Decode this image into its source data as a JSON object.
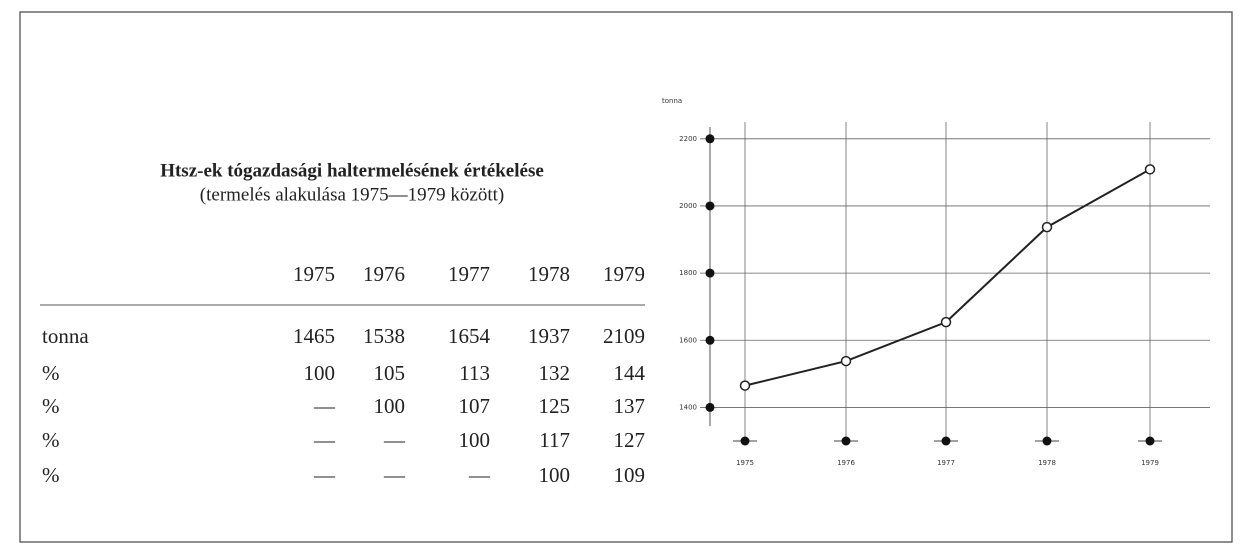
{
  "title": "Htsz-ek tógazdasági haltermelésének értékelése",
  "subtitle": "(termelés alakulása 1975—1979 között)",
  "table": {
    "columns": [
      "1975",
      "1976",
      "1977",
      "1978",
      "1979"
    ],
    "rows": [
      [
        "tonna",
        "1465",
        "1538",
        "1654",
        "1937",
        "2109"
      ],
      [
        "%",
        "100",
        "105",
        "113",
        "132",
        "144"
      ],
      [
        "%",
        "—",
        "100",
        "107",
        "125",
        "137"
      ],
      [
        "%",
        "—",
        "—",
        "100",
        "117",
        "127"
      ],
      [
        "%",
        "—",
        "—",
        "—",
        "100",
        "109"
      ]
    ]
  },
  "chart_data": {
    "type": "line",
    "ylabel": "tonna",
    "categories": [
      "1975",
      "1976",
      "1977",
      "1978",
      "1979"
    ],
    "values": [
      1465,
      1538,
      1654,
      1937,
      2109
    ],
    "color": "#222222",
    "ylim": [
      1300,
      2250
    ],
    "yticks": [
      1400,
      1600,
      1800,
      2000,
      2200
    ],
    "grid": true
  }
}
